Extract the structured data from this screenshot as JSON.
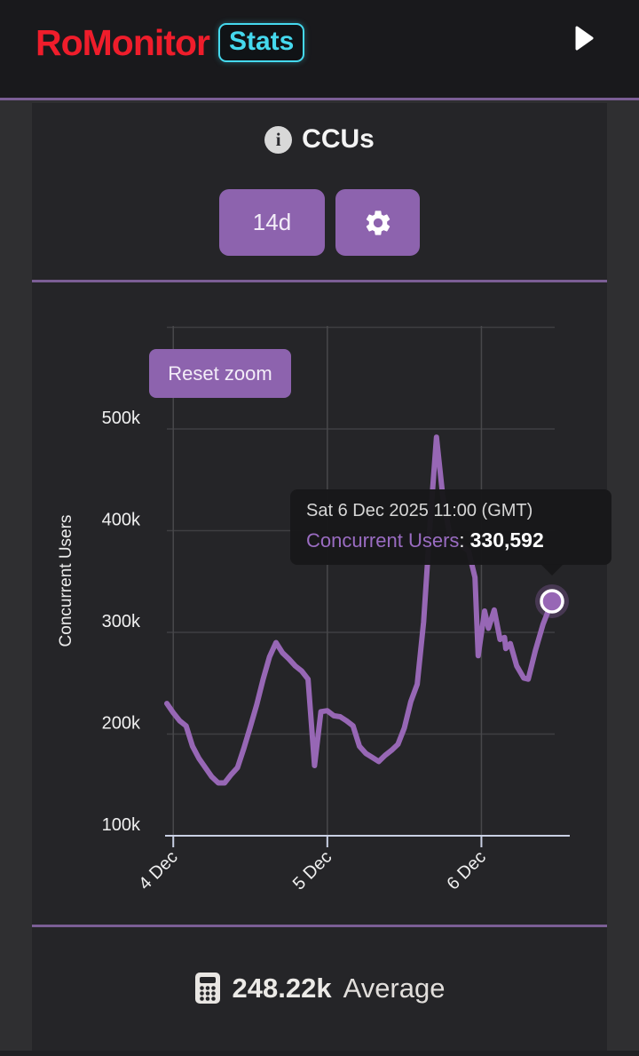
{
  "header": {
    "logo_primary": "RoMonitor",
    "logo_badge": "Stats"
  },
  "icons": {
    "info_glyph": "i"
  },
  "panel": {
    "title": "CCUs",
    "range_button_label": "14d",
    "reset_zoom_label": "Reset zoom",
    "average_value": "248.22k",
    "average_label": "Average"
  },
  "tooltip": {
    "title": "Sat 6 Dec 2025 11:00 (GMT)",
    "series_label": "Concurrent Users",
    "separator": ": ",
    "value": "330,592"
  },
  "chart_data": {
    "type": "line",
    "title": "CCUs",
    "ylabel": "Concurrent Users",
    "xlabel": "",
    "grid": "on",
    "legend": "none",
    "x_unit": "hours offset from 3 Dec 2025 23:00 (GMT)",
    "x_range_hours": [
      0,
      60
    ],
    "ylim_k": [
      100,
      600
    ],
    "y_ticks": [
      {
        "label": "100k",
        "value_k": 100
      },
      {
        "label": "200k",
        "value_k": 200
      },
      {
        "label": "300k",
        "value_k": 300
      },
      {
        "label": "400k",
        "value_k": 400
      },
      {
        "label": "500k",
        "value_k": 500
      }
    ],
    "grid_values_k": [
      200,
      300,
      400,
      500,
      600
    ],
    "x_ticks": [
      {
        "label": "4 Dec",
        "hour": 1
      },
      {
        "label": "5 Dec",
        "hour": 25
      },
      {
        "label": "6 Dec",
        "hour": 49
      }
    ],
    "series": [
      {
        "name": "Concurrent Users",
        "unit": "thousands of users",
        "points": [
          [
            0,
            230
          ],
          [
            1,
            221
          ],
          [
            2,
            213
          ],
          [
            3,
            208
          ],
          [
            4,
            188
          ],
          [
            5,
            176
          ],
          [
            6,
            167
          ],
          [
            7,
            158
          ],
          [
            8,
            152
          ],
          [
            9,
            152
          ],
          [
            10,
            160
          ],
          [
            11,
            167
          ],
          [
            12,
            186
          ],
          [
            13,
            207
          ],
          [
            14,
            229
          ],
          [
            15,
            254
          ],
          [
            16,
            276
          ],
          [
            17,
            290
          ],
          [
            18,
            280
          ],
          [
            19,
            274
          ],
          [
            20,
            267
          ],
          [
            21,
            262
          ],
          [
            22,
            254
          ],
          [
            23,
            169
          ],
          [
            24,
            222
          ],
          [
            25,
            223
          ],
          [
            26,
            218
          ],
          [
            27,
            217
          ],
          [
            28,
            213
          ],
          [
            29,
            208
          ],
          [
            30,
            188
          ],
          [
            31,
            181
          ],
          [
            32,
            177
          ],
          [
            33,
            173
          ],
          [
            34,
            179
          ],
          [
            35,
            184
          ],
          [
            36,
            190
          ],
          [
            37,
            206
          ],
          [
            38,
            232
          ],
          [
            39,
            249
          ],
          [
            40,
            310
          ],
          [
            41,
            407
          ],
          [
            42,
            492
          ],
          [
            43,
            433
          ],
          [
            44,
            398
          ],
          [
            45,
            389
          ],
          [
            46,
            385
          ],
          [
            47,
            380
          ],
          [
            48,
            354
          ],
          [
            48.5,
            277
          ],
          [
            49.5,
            321
          ],
          [
            50.1,
            304
          ],
          [
            51,
            322
          ],
          [
            51.9,
            293
          ],
          [
            52.6,
            295
          ],
          [
            52.8,
            284
          ],
          [
            53.5,
            289
          ],
          [
            54.5,
            267
          ],
          [
            55.6,
            255
          ],
          [
            56.3,
            254
          ],
          [
            57.4,
            282
          ],
          [
            58.6,
            308
          ],
          [
            60,
            330.592
          ]
        ]
      }
    ],
    "highlight_point": {
      "hour": 60,
      "value_k": 330.592,
      "display_value": "330,592",
      "datetime": "Sat 6 Dec 2025 11:00 (GMT)"
    },
    "average_k": 248.22,
    "colors": {
      "line": "#9767b5",
      "marker_fill": "#9767b5",
      "marker_ring": "#ffffff",
      "marker_halo": "rgba(151,103,181,0.3)",
      "grid": "#3f3f42",
      "grid_vertical": "#48484b",
      "axis": "#c9d0e4",
      "tick_text": "#f0f0f0",
      "axis_title_text": "#ececec"
    }
  },
  "colors": {
    "page_bg": "#2f2f31",
    "card_bg": "#252528",
    "header_bg": "#19191c",
    "accent_purple": "#8d63ae",
    "divider_purple": "#7b5e95",
    "logo_red": "#ef1d2b",
    "badge_cyan": "#45d9ee",
    "tooltip_bg": "#18181a"
  }
}
